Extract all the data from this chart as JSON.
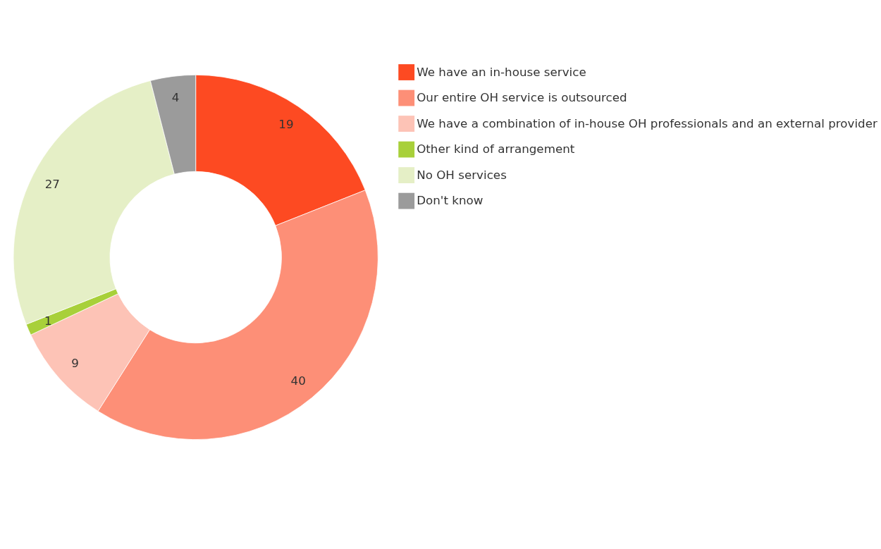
{
  "chart_data": {
    "type": "donut",
    "categories": [
      "We have an in-house service",
      "Our entire OH service is outsourced",
      "We have a combination of in-house OH professionals and an external provider",
      "Other kind of arrangement",
      "No OH services",
      "Don't know"
    ],
    "values": [
      19,
      40,
      9,
      1,
      27,
      4
    ],
    "colors": [
      "#fd4a22",
      "#fd8f77",
      "#fdc3b6",
      "#a8d03a",
      "#e5efc6",
      "#9b9b9b"
    ],
    "data_labels": true,
    "legend": "right"
  }
}
